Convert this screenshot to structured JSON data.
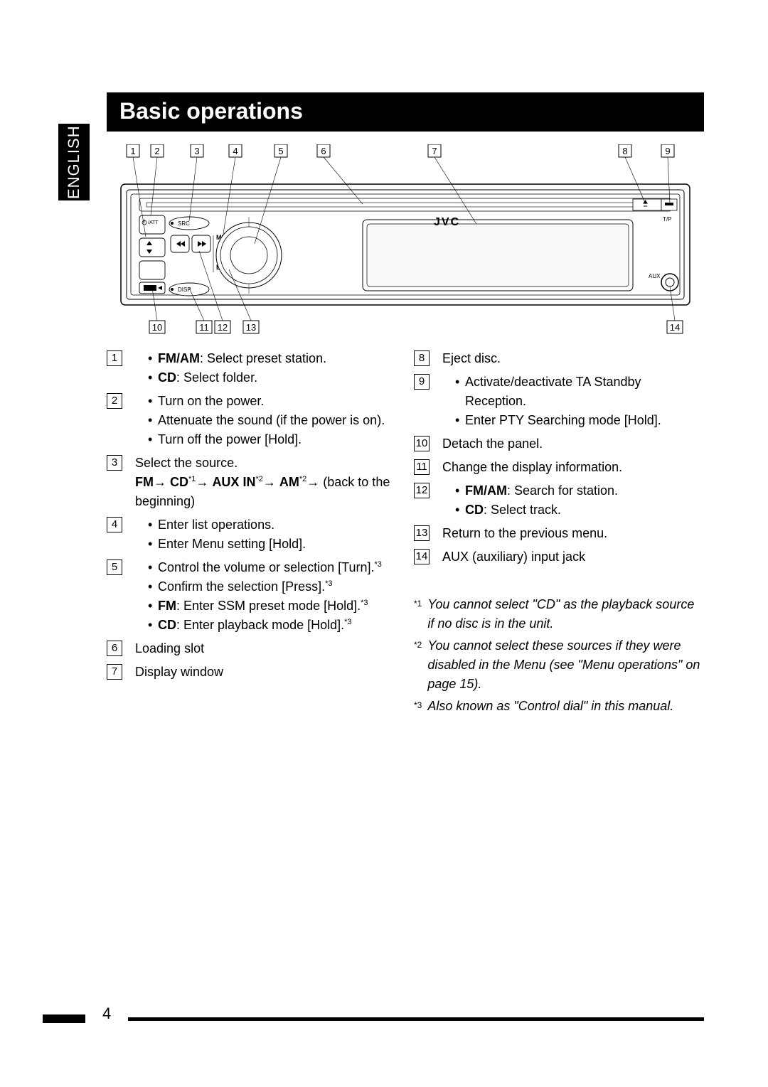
{
  "sideTab": "ENGLISH",
  "title": "Basic operations",
  "pageNumber": "4",
  "callouts": [
    "1",
    "2",
    "3",
    "4",
    "5",
    "6",
    "7",
    "8",
    "9",
    "10",
    "11",
    "12",
    "13",
    "14"
  ],
  "diagram": {
    "brand": "JVC",
    "labels": {
      "menu": "MENU",
      "back": "BACK",
      "src": "SRC",
      "disp": "DISP",
      "tp": "T/P",
      "aux": "AUX",
      "power": "/ATT"
    }
  },
  "leftItems": [
    {
      "num": "1",
      "lines": [
        {
          "type": "bullet",
          "spans": [
            {
              "t": "FM/AM",
              "b": true
            },
            {
              "t": ": Select preset station."
            }
          ]
        },
        {
          "type": "bullet",
          "spans": [
            {
              "t": "CD",
              "b": true
            },
            {
              "t": ": Select folder."
            }
          ]
        }
      ]
    },
    {
      "num": "2",
      "lines": [
        {
          "type": "bullet",
          "spans": [
            {
              "t": "Turn on the power."
            }
          ]
        },
        {
          "type": "bullet",
          "spans": [
            {
              "t": "Attenuate the sound (if the power is on)."
            }
          ]
        },
        {
          "type": "bullet",
          "spans": [
            {
              "t": "Turn off the power [Hold]."
            }
          ]
        }
      ]
    },
    {
      "num": "3",
      "lines": [
        {
          "type": "plain",
          "spans": [
            {
              "t": "Select the source."
            }
          ]
        },
        {
          "type": "source",
          "spans": [
            {
              "t": "FM",
              "b": true
            },
            {
              "t": " → ",
              "arrow": true
            },
            {
              "t": "CD",
              "b": true
            },
            {
              "t": "*1",
              "sup": true
            },
            {
              "t": " → ",
              "arrow": true
            },
            {
              "t": "AUX IN",
              "b": true
            },
            {
              "t": "*2",
              "sup": true
            },
            {
              "t": " → ",
              "arrow": true
            },
            {
              "t": "AM",
              "b": true
            },
            {
              "t": "*2",
              "sup": true
            },
            {
              "t": " → ",
              "arrow": true
            },
            {
              "t": "(back to the beginning)"
            }
          ]
        }
      ]
    },
    {
      "num": "4",
      "lines": [
        {
          "type": "bullet",
          "spans": [
            {
              "t": "Enter list operations."
            }
          ]
        },
        {
          "type": "bullet",
          "spans": [
            {
              "t": "Enter Menu setting [Hold]."
            }
          ]
        }
      ]
    },
    {
      "num": "5",
      "lines": [
        {
          "type": "bullet",
          "spans": [
            {
              "t": "Control the volume or selection [Turn]."
            },
            {
              "t": "*3",
              "sup": true
            }
          ]
        },
        {
          "type": "bullet",
          "spans": [
            {
              "t": "Confirm the selection [Press]."
            },
            {
              "t": "*3",
              "sup": true
            }
          ]
        },
        {
          "type": "bullet",
          "spans": [
            {
              "t": "FM",
              "b": true
            },
            {
              "t": ": Enter SSM preset mode [Hold]."
            },
            {
              "t": "*3",
              "sup": true
            }
          ]
        },
        {
          "type": "bullet",
          "spans": [
            {
              "t": "CD",
              "b": true
            },
            {
              "t": ": Enter playback mode [Hold]."
            },
            {
              "t": "*3",
              "sup": true
            }
          ]
        }
      ]
    },
    {
      "num": "6",
      "lines": [
        {
          "type": "plain",
          "spans": [
            {
              "t": "Loading slot"
            }
          ]
        }
      ]
    },
    {
      "num": "7",
      "lines": [
        {
          "type": "plain",
          "spans": [
            {
              "t": "Display window"
            }
          ]
        }
      ]
    }
  ],
  "rightItems": [
    {
      "num": "8",
      "lines": [
        {
          "type": "plain",
          "spans": [
            {
              "t": "Eject disc."
            }
          ]
        }
      ]
    },
    {
      "num": "9",
      "lines": [
        {
          "type": "bullet",
          "spans": [
            {
              "t": "Activate/deactivate TA Standby Reception."
            }
          ]
        },
        {
          "type": "bullet",
          "spans": [
            {
              "t": "Enter PTY Searching mode [Hold]."
            }
          ]
        }
      ]
    },
    {
      "num": "10",
      "lines": [
        {
          "type": "plain",
          "spans": [
            {
              "t": "Detach the panel."
            }
          ]
        }
      ]
    },
    {
      "num": "11",
      "lines": [
        {
          "type": "plain",
          "spans": [
            {
              "t": "Change the display information."
            }
          ]
        }
      ]
    },
    {
      "num": "12",
      "lines": [
        {
          "type": "bullet",
          "spans": [
            {
              "t": "FM/AM",
              "b": true
            },
            {
              "t": ": Search for station."
            }
          ]
        },
        {
          "type": "bullet",
          "spans": [
            {
              "t": "CD",
              "b": true
            },
            {
              "t": ": Select track."
            }
          ]
        }
      ]
    },
    {
      "num": "13",
      "lines": [
        {
          "type": "plain",
          "spans": [
            {
              "t": "Return to the previous menu."
            }
          ]
        }
      ]
    },
    {
      "num": "14",
      "lines": [
        {
          "type": "plain",
          "spans": [
            {
              "t": "AUX (auxiliary) input jack"
            }
          ]
        }
      ]
    }
  ],
  "footnotes": [
    {
      "marker": "*1",
      "text": "You cannot select \"CD\" as the playback source if no disc is in the unit."
    },
    {
      "marker": "*2",
      "text": "You cannot select these sources if they were disabled in the Menu (see \"Menu operations\" on page 15)."
    },
    {
      "marker": "*3",
      "text": "Also known as \"Control dial\" in this manual."
    }
  ]
}
